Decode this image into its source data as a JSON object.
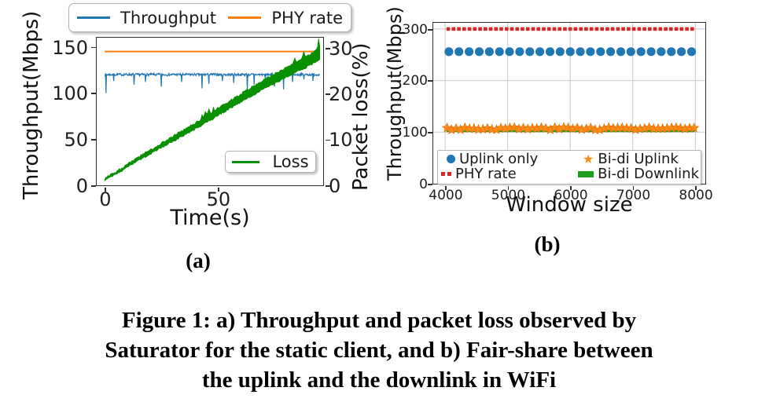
{
  "figure": {
    "caption_lines": [
      "Figure 1: a) Throughput and packet loss observed by",
      "Saturator for the static client, and b) Fair-share between",
      "the uplink and the downlink in WiFi"
    ],
    "sub_a": "(a)",
    "sub_b": "(b)"
  },
  "chart_data": [
    {
      "id": "a",
      "type": "line",
      "xlabel": "Time(s)",
      "ylabel_left": "Throughput(Mbps)",
      "ylabel_right": "Packet loss(%)",
      "xlim": [
        -3.5,
        96.5
      ],
      "xticks": [
        0,
        50
      ],
      "ylim_left": [
        0,
        160
      ],
      "yticks_left": [
        0,
        50,
        100,
        150
      ],
      "ylim_right": [
        0,
        32.2
      ],
      "yticks_right": [
        0,
        10,
        20,
        30
      ],
      "grid": false,
      "legend_top": [
        {
          "label": "Throughput",
          "color": "#1f77b4"
        },
        {
          "label": "PHY rate",
          "color": "#ff7f0e"
        }
      ],
      "legend_inner": [
        {
          "label": "Loss",
          "color": "#089000"
        }
      ],
      "series": [
        {
          "name": "Throughput",
          "axis": "left",
          "style": "noisy-line",
          "color": "#1f77b4",
          "x_start": 0,
          "x_end": 95,
          "y_mean": 120,
          "y_jitter": 1.3,
          "spikes": [
            [
              0.6,
              100
            ],
            [
              4,
              113
            ],
            [
              13,
              109
            ],
            [
              18,
              112
            ],
            [
              25,
              107
            ],
            [
              34,
              112
            ],
            [
              43,
              105
            ],
            [
              46,
              110
            ],
            [
              52,
              113
            ],
            [
              57,
              111
            ],
            [
              63,
              104
            ],
            [
              66,
              109
            ],
            [
              71,
              113
            ],
            [
              75,
              107
            ],
            [
              79,
              104
            ],
            [
              83,
              112
            ],
            [
              88,
              115
            ],
            [
              92,
              113
            ]
          ]
        },
        {
          "name": "PHY rate",
          "axis": "left",
          "style": "line",
          "color": "#ff7f0e",
          "points": [
            [
              0,
              145
            ],
            [
              95,
              145
            ]
          ]
        },
        {
          "name": "Loss",
          "axis": "right",
          "style": "band",
          "color": "#089000",
          "points": [
            [
              0,
              1.2
            ],
            [
              5,
              2.7
            ],
            [
              10,
              4.2
            ],
            [
              15,
              5.8
            ],
            [
              20,
              7.2
            ],
            [
              25,
              8.7
            ],
            [
              30,
              10.1
            ],
            [
              35,
              11.5
            ],
            [
              40,
              12.9
            ],
            [
              45,
              14.4
            ],
            [
              50,
              16.0
            ],
            [
              55,
              17.5
            ],
            [
              60,
              19.0
            ],
            [
              65,
              20.5
            ],
            [
              70,
              21.9
            ],
            [
              75,
              23.2
            ],
            [
              80,
              24.6
            ],
            [
              85,
              25.9
            ],
            [
              90,
              27.2
            ],
            [
              95,
              28.6
            ]
          ],
          "band_width_start": 0.5,
          "band_width_end": 2.6,
          "spikes": [
            [
              43,
              1.0
            ],
            [
              44.5,
              1.3
            ],
            [
              46,
              1.1
            ],
            [
              48,
              0.8
            ],
            [
              84,
              1.2
            ],
            [
              88,
              1.5
            ],
            [
              94.5,
              2.2
            ]
          ]
        }
      ]
    },
    {
      "id": "b",
      "type": "scatter",
      "xlabel": "Window size",
      "ylabel": "Throughput(Mbps)",
      "xlim": [
        3810,
        8160
      ],
      "xticks": [
        4000,
        5000,
        6000,
        7000,
        8000
      ],
      "ylim": [
        0,
        312
      ],
      "yticks": [
        0,
        100,
        200,
        300
      ],
      "grid": true,
      "grid_color": "#c9c9c9",
      "legend": [
        {
          "label": "Uplink only",
          "marker": "circle",
          "color": "#1f77b4"
        },
        {
          "label": "PHY rate",
          "marker": "dash-squares",
          "color": "#d62728"
        },
        {
          "label": "Bi-di Uplink",
          "marker": "star",
          "glyph": "★",
          "color": "#ff8c1a"
        },
        {
          "label": "Bi-di Downlink",
          "marker": "thick-line",
          "color": "#1ca01c"
        }
      ],
      "series": [
        {
          "name": "PHY rate",
          "style": "dash-squares",
          "color": "#d62728",
          "x_start": 4050,
          "x_end": 7950,
          "count": 47,
          "value": 300
        },
        {
          "name": "Uplink only",
          "style": "circles",
          "color": "#1f77b4",
          "x_start": 4060,
          "x_end": 7940,
          "count": 25,
          "value": 256
        },
        {
          "name": "Bi-di Downlink",
          "style": "thick-line",
          "color": "#1ca01c",
          "x_start": 4020,
          "x_end": 7990,
          "value": 104,
          "band_height": 5
        },
        {
          "name": "Bi-di Uplink",
          "style": "stars",
          "color": "#ff8c1a",
          "edge_color": "#e2750e",
          "x_start": 4030,
          "x_end": 7980,
          "count": 56,
          "y_mean": 107,
          "y_jitter": 2.5
        }
      ]
    }
  ]
}
